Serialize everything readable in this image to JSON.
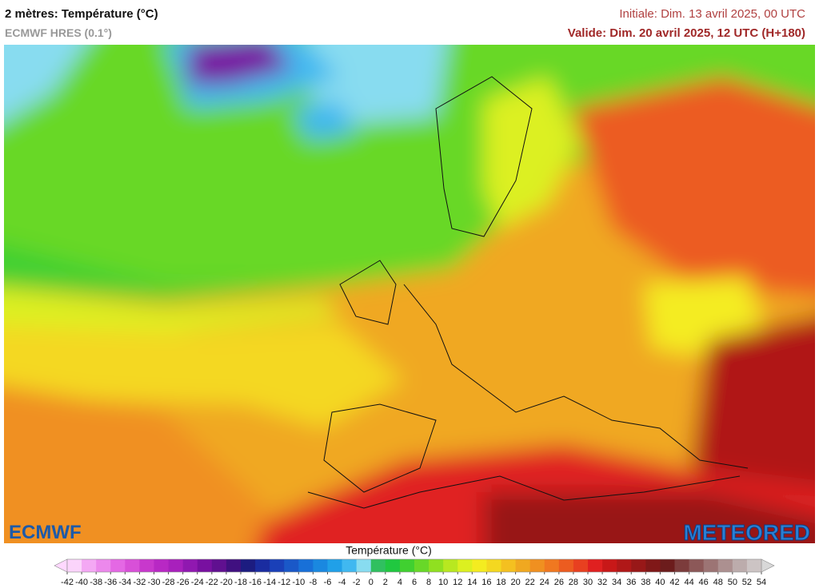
{
  "header": {
    "title": "2 mètres: Température (°C)",
    "subtitle": "ECMWF HRES (0.1°)",
    "initial": "Initiale: Dim. 13 avril 2025, 00 UTC",
    "valid": "Valide: Dim. 20 avril 2025, 12 UTC (H+180)"
  },
  "map": {
    "left_logo": "ECMWF",
    "right_logo": "METEORED"
  },
  "colorbar": {
    "title": "Température (°C)",
    "ticks": [
      -42,
      -40,
      -38,
      -36,
      -34,
      -32,
      -30,
      -28,
      -26,
      -24,
      -22,
      -20,
      -18,
      -16,
      -14,
      -12,
      -10,
      -8,
      -6,
      -4,
      -2,
      0,
      2,
      4,
      6,
      8,
      10,
      12,
      14,
      16,
      18,
      20,
      22,
      24,
      26,
      28,
      30,
      32,
      34,
      36,
      38,
      40,
      42,
      44,
      46,
      48,
      50,
      52,
      54
    ],
    "colors": [
      "#fbd4fb",
      "#f4a8f4",
      "#ec88ec",
      "#e468e4",
      "#d850d8",
      "#c838cc",
      "#b828c4",
      "#a820bc",
      "#9018b0",
      "#7810a0",
      "#601090",
      "#401080",
      "#1c1c80",
      "#1a2ca0",
      "#1a40b8",
      "#1a58c8",
      "#1870d8",
      "#1a88e0",
      "#20a0e8",
      "#40b8f0",
      "#88dcf0",
      "#30c060",
      "#20c840",
      "#40d030",
      "#68d828",
      "#90e020",
      "#b8e820",
      "#dcf020",
      "#f4ec20",
      "#f4d820",
      "#f4c020",
      "#f0a820",
      "#f09020",
      "#f07820",
      "#ec5c20",
      "#e84020",
      "#e02020",
      "#c81818",
      "#b01818",
      "#981818",
      "#801818",
      "#6c1c1c",
      "#7c3c3c",
      "#8c5858",
      "#9c7474",
      "#ac9090",
      "#bcacac",
      "#ccc4c4"
    ],
    "under_color": "#ffd8ff",
    "over_color": "#d8d8d8"
  }
}
